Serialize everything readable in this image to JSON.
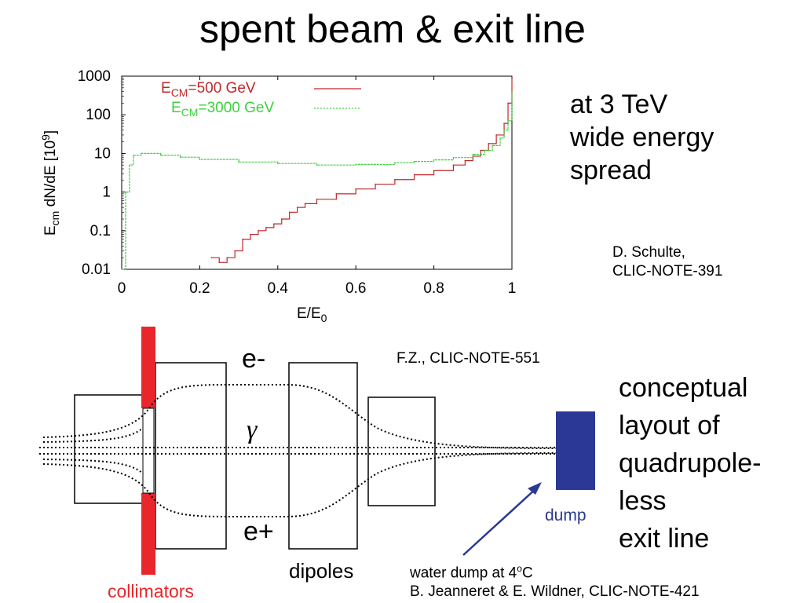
{
  "slide": {
    "title": "spent beam & exit line",
    "side_note_1": [
      "at 3 TeV",
      "wide energy",
      "spread"
    ],
    "citation_1": [
      "D. Schulte,",
      "CLIC-NOTE-391"
    ],
    "side_note_2": [
      "conceptual",
      "layout of",
      "quadrupole-",
      "less",
      "exit line"
    ],
    "citation_2": "F.Z., CLIC-NOTE-551",
    "citation_3": [
      "water dump at 4",
      "o",
      "C",
      "B. Jeanneret & E. Wildner, CLIC-NOTE-421"
    ]
  },
  "chart_data": {
    "type": "line",
    "xlabel": "E/E0",
    "ylabel": "Ecm dN/dE [10^9]",
    "x_tick_labels": [
      "0",
      "0.2",
      "0.4",
      "0.6",
      "0.8",
      "1"
    ],
    "y_tick_labels": [
      "0.01",
      "0.1",
      "1",
      "10",
      "100",
      "1000"
    ],
    "xlim": [
      0,
      1
    ],
    "ylim": [
      0.01,
      1000
    ],
    "y_scale": "log",
    "legend_placement": "top",
    "series": [
      {
        "name": "ECM=500 GeV",
        "color": "#c0282a",
        "x": [
          0.23,
          0.25,
          0.27,
          0.29,
          0.31,
          0.33,
          0.35,
          0.37,
          0.39,
          0.41,
          0.43,
          0.45,
          0.47,
          0.5,
          0.55,
          0.6,
          0.65,
          0.7,
          0.75,
          0.8,
          0.85,
          0.88,
          0.9,
          0.92,
          0.94,
          0.96,
          0.98,
          0.99,
          1.0
        ],
        "values": [
          0.02,
          0.015,
          0.02,
          0.03,
          0.06,
          0.08,
          0.1,
          0.12,
          0.15,
          0.2,
          0.3,
          0.4,
          0.5,
          0.65,
          0.9,
          1.2,
          1.6,
          2.1,
          2.8,
          3.6,
          5.0,
          6.5,
          8.5,
          12,
          18,
          30,
          60,
          200,
          900
        ]
      },
      {
        "name": "ECM=3000 GeV",
        "color": "#3dd13d",
        "x": [
          0.0,
          0.01,
          0.02,
          0.03,
          0.05,
          0.1,
          0.15,
          0.2,
          0.3,
          0.4,
          0.5,
          0.6,
          0.7,
          0.75,
          0.8,
          0.85,
          0.9,
          0.93,
          0.95,
          0.97,
          0.98,
          0.99,
          1.0
        ],
        "values": [
          0.01,
          1.0,
          5.0,
          9.0,
          10.0,
          9.0,
          8.0,
          7.0,
          6.0,
          5.5,
          5.0,
          5.2,
          5.8,
          6.2,
          6.8,
          7.8,
          9.5,
          12,
          16,
          25,
          40,
          70,
          400
        ]
      }
    ]
  },
  "diagram": {
    "labels": {
      "e_minus": "e-",
      "gamma": "γ",
      "e_plus": "e+",
      "collimators": "collimators",
      "dipoles": "dipoles",
      "dump": "dump"
    }
  }
}
